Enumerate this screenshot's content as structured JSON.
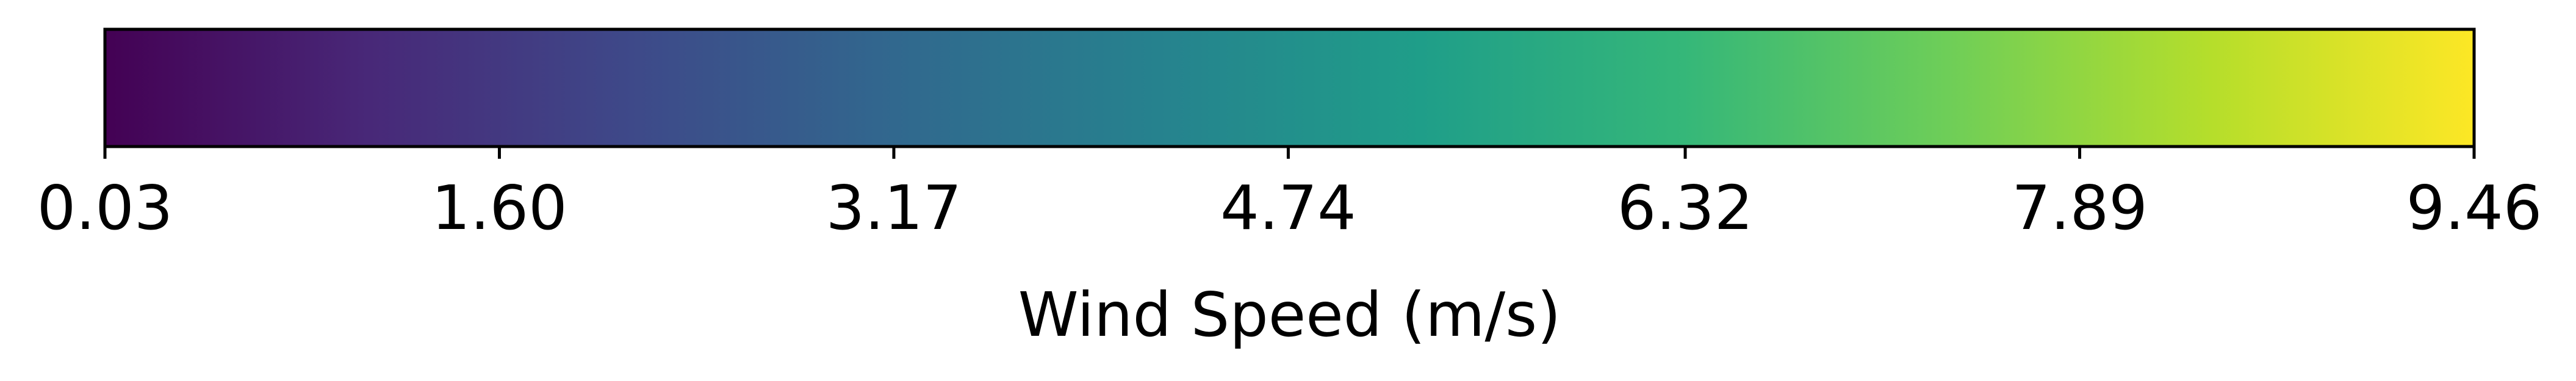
{
  "chart_data": {
    "type": "heatmap",
    "title": "",
    "xlabel": "Wind Speed (m/s)",
    "ylabel": "",
    "colormap": "viridis",
    "xlim": [
      0.03,
      9.46
    ],
    "ticks": [
      {
        "value": 0.03,
        "label": "0.03"
      },
      {
        "value": 1.6,
        "label": "1.60"
      },
      {
        "value": 3.17,
        "label": "3.17"
      },
      {
        "value": 4.74,
        "label": "4.74"
      },
      {
        "value": 6.32,
        "label": "6.32"
      },
      {
        "value": 7.89,
        "label": "7.89"
      },
      {
        "value": 9.46,
        "label": "9.46"
      }
    ],
    "gradient_colors": [
      "#440154",
      "#482878",
      "#3e4989",
      "#31688e",
      "#26828e",
      "#1f9e89",
      "#35b779",
      "#6ece58",
      "#b5de2b",
      "#fde725"
    ],
    "outline_color": "#000000"
  }
}
